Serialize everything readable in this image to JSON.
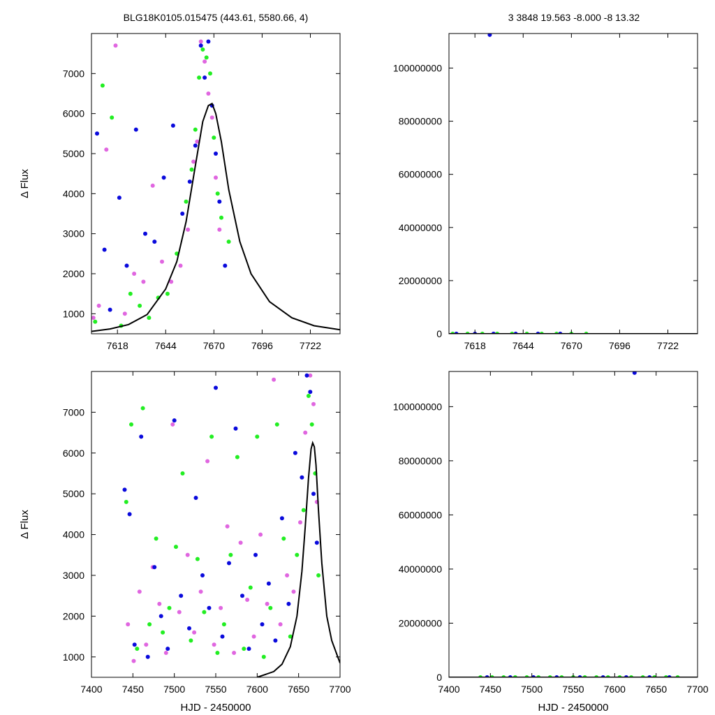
{
  "header": {
    "left": "BLG18K0105.015475 (443.61, 5580.66,    4)",
    "right": "3    3848    19.563    -8.000    -8    13.32"
  },
  "colors": {
    "series_a": "#22ee22",
    "series_b": "#e066e0",
    "series_c": "#0a0adc",
    "model": "#000000",
    "axis": "#000000"
  },
  "chart_data": [
    {
      "id": "zoom-flux",
      "type": "scatter",
      "xlabel": "",
      "ylabel": "Δ Flux",
      "xlim": [
        7604,
        7738
      ],
      "ylim": [
        500,
        8000
      ],
      "xticks": [
        7618,
        7644,
        7670,
        7696,
        7722
      ],
      "yticks": [
        1000,
        2000,
        3000,
        4000,
        5000,
        6000,
        7000
      ],
      "grid": false,
      "series": [
        {
          "color": "#22ee22",
          "x": [
            7606,
            7610,
            7615,
            7620,
            7625,
            7630,
            7635,
            7640,
            7645,
            7650,
            7655,
            7658,
            7660,
            7662,
            7664,
            7666,
            7668,
            7670,
            7672,
            7674,
            7678
          ],
          "y": [
            800,
            6700,
            5900,
            700,
            1500,
            1200,
            900,
            1400,
            1500,
            2500,
            3800,
            4600,
            5600,
            6900,
            7600,
            7400,
            7000,
            5400,
            4000,
            3400,
            2800
          ]
        },
        {
          "color": "#e066e0",
          "x": [
            7605,
            7608,
            7612,
            7617,
            7622,
            7627,
            7632,
            7637,
            7642,
            7647,
            7652,
            7656,
            7659,
            7661,
            7663,
            7665,
            7667,
            7669,
            7671,
            7673
          ],
          "y": [
            900,
            1200,
            5100,
            7700,
            1000,
            2000,
            1800,
            4200,
            2300,
            1800,
            2200,
            3100,
            4800,
            5300,
            7800,
            7300,
            6500,
            5900,
            4400,
            3100
          ]
        },
        {
          "color": "#0a0adc",
          "x": [
            7607,
            7611,
            7614,
            7619,
            7623,
            7628,
            7633,
            7638,
            7643,
            7648,
            7653,
            7657,
            7660,
            7663,
            7665,
            7667,
            7669,
            7671,
            7673,
            7676
          ],
          "y": [
            5500,
            2600,
            1100,
            3900,
            2200,
            5600,
            3000,
            2800,
            4400,
            5700,
            3500,
            4300,
            5200,
            7700,
            6900,
            7800,
            6200,
            5000,
            3800,
            2200
          ]
        }
      ],
      "model": {
        "color": "#000000",
        "x": [
          7604,
          7614,
          7624,
          7634,
          7644,
          7650,
          7655,
          7660,
          7664,
          7667,
          7669,
          7671,
          7674,
          7678,
          7684,
          7690,
          7700,
          7712,
          7724,
          7738
        ],
        "y": [
          560,
          620,
          730,
          980,
          1620,
          2300,
          3300,
          4700,
          5800,
          6200,
          6250,
          6000,
          5300,
          4100,
          2800,
          2000,
          1300,
          900,
          700,
          600
        ]
      }
    },
    {
      "id": "zoom-mag",
      "type": "scatter",
      "xlabel": "",
      "ylabel": "",
      "xlim": [
        7604,
        7738
      ],
      "ylim": [
        0,
        113000000
      ],
      "xticks": [
        7618,
        7644,
        7670,
        7696,
        7722
      ],
      "yticks": [
        0,
        20000000,
        40000000,
        60000000,
        80000000,
        100000000
      ],
      "grid": false,
      "series": [
        {
          "color": "#22ee22",
          "x": [
            7606,
            7614,
            7622,
            7630,
            7638,
            7646,
            7654,
            7662,
            7670,
            7678
          ],
          "y": [
            0,
            0,
            0,
            0,
            0,
            0,
            0,
            0,
            0,
            0
          ]
        },
        {
          "color": "#0a0adc",
          "x": [
            7608,
            7618,
            7628,
            7640,
            7652,
            7664
          ],
          "y": [
            0,
            0,
            0,
            0,
            0,
            0
          ]
        },
        {
          "color": "#0a0adc",
          "x": [
            7626
          ],
          "y": [
            112500000
          ]
        }
      ],
      "model": {
        "color": "#000000",
        "x": [
          7604,
          7738
        ],
        "y": [
          0,
          0
        ]
      }
    },
    {
      "id": "full-flux",
      "type": "scatter",
      "xlabel": "HJD - 2450000",
      "ylabel": "Δ Flux",
      "xlim": [
        7400,
        7700
      ],
      "ylim": [
        500,
        8000
      ],
      "xticks": [
        7400,
        7450,
        7500,
        7550,
        7600,
        7650,
        7700
      ],
      "yticks": [
        1000,
        2000,
        3000,
        4000,
        5000,
        6000,
        7000
      ],
      "grid": false,
      "series": [
        {
          "color": "#22ee22",
          "x": [
            7442,
            7448,
            7455,
            7462,
            7470,
            7478,
            7486,
            7494,
            7502,
            7510,
            7520,
            7528,
            7536,
            7545,
            7552,
            7560,
            7568,
            7576,
            7584,
            7592,
            7600,
            7608,
            7616,
            7624,
            7632,
            7640,
            7648,
            7656,
            7662,
            7666,
            7670,
            7674
          ],
          "y": [
            4800,
            6700,
            1200,
            7100,
            1800,
            3900,
            1600,
            2200,
            3700,
            5500,
            1400,
            3400,
            2100,
            6400,
            1100,
            1800,
            3500,
            5900,
            1200,
            2700,
            6400,
            1000,
            2200,
            6700,
            3900,
            1500,
            3500,
            4600,
            7400,
            6700,
            5500,
            3000
          ]
        },
        {
          "color": "#e066e0",
          "x": [
            7444,
            7451,
            7458,
            7466,
            7474,
            7482,
            7490,
            7498,
            7506,
            7516,
            7524,
            7532,
            7540,
            7548,
            7556,
            7564,
            7572,
            7580,
            7588,
            7596,
            7604,
            7612,
            7620,
            7628,
            7636,
            7644,
            7652,
            7658,
            7664,
            7668,
            7672
          ],
          "y": [
            1800,
            900,
            2600,
            1300,
            3200,
            2300,
            1100,
            6700,
            2100,
            3500,
            1600,
            2600,
            5800,
            1300,
            2200,
            4200,
            1100,
            3800,
            2400,
            1500,
            4000,
            2300,
            7800,
            1800,
            3000,
            2600,
            4300,
            6500,
            7900,
            7200,
            4800
          ]
        },
        {
          "color": "#0a0adc",
          "x": [
            7440,
            7446,
            7452,
            7460,
            7468,
            7476,
            7484,
            7492,
            7500,
            7508,
            7518,
            7526,
            7534,
            7542,
            7550,
            7558,
            7566,
            7574,
            7582,
            7590,
            7598,
            7606,
            7614,
            7622,
            7630,
            7638,
            7646,
            7654,
            7660,
            7664,
            7668,
            7672
          ],
          "y": [
            5100,
            4500,
            1300,
            6400,
            1000,
            3200,
            2000,
            1200,
            6800,
            2500,
            1700,
            4900,
            3000,
            2200,
            7600,
            1500,
            3300,
            6600,
            2500,
            1200,
            3500,
            1800,
            2800,
            1400,
            4400,
            2300,
            6000,
            5400,
            7900,
            7500,
            5000,
            3800
          ]
        }
      ],
      "model": {
        "color": "#000000",
        "x": [
          7600,
          7620,
          7630,
          7640,
          7648,
          7654,
          7658,
          7662,
          7665,
          7667,
          7669,
          7671,
          7674,
          7678,
          7684,
          7690,
          7700
        ],
        "y": [
          500,
          640,
          820,
          1250,
          2000,
          3100,
          4200,
          5400,
          6100,
          6250,
          6150,
          5700,
          4600,
          3300,
          2000,
          1400,
          850
        ]
      }
    },
    {
      "id": "full-mag",
      "type": "scatter",
      "xlabel": "HJD - 2450000",
      "ylabel": "",
      "xlim": [
        7400,
        7700
      ],
      "ylim": [
        0,
        113000000
      ],
      "xticks": [
        7400,
        7450,
        7500,
        7550,
        7600,
        7650,
        7700
      ],
      "yticks": [
        0,
        20000000,
        40000000,
        60000000,
        80000000,
        100000000
      ],
      "grid": false,
      "series": [
        {
          "color": "#22ee22",
          "x": [
            7438,
            7452,
            7466,
            7480,
            7494,
            7508,
            7522,
            7536,
            7550,
            7564,
            7578,
            7592,
            7606,
            7620,
            7634,
            7648,
            7662,
            7676
          ],
          "y": [
            0,
            0,
            0,
            0,
            0,
            0,
            0,
            0,
            0,
            0,
            0,
            0,
            0,
            0,
            0,
            0,
            0,
            0
          ]
        },
        {
          "color": "#0a0adc",
          "x": [
            7446,
            7474,
            7502,
            7530,
            7558,
            7586,
            7614,
            7642,
            7666
          ],
          "y": [
            0,
            0,
            0,
            0,
            0,
            0,
            0,
            0,
            0
          ]
        },
        {
          "color": "#0a0adc",
          "x": [
            7624
          ],
          "y": [
            112500000
          ]
        }
      ],
      "model": {
        "color": "#000000",
        "x": [
          7400,
          7700
        ],
        "y": [
          0,
          0
        ]
      }
    }
  ]
}
